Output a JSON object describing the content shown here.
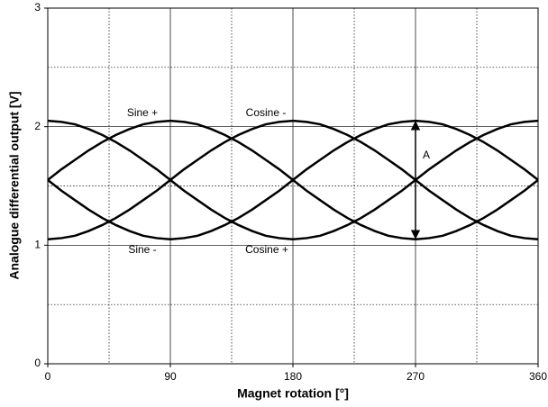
{
  "chart_data": {
    "type": "line",
    "xlabel": "Magnet rotation [°]",
    "ylabel": "Analogue differential output [V]",
    "x": [
      0,
      10,
      20,
      30,
      40,
      50,
      60,
      70,
      80,
      90,
      100,
      110,
      120,
      130,
      140,
      150,
      160,
      170,
      180,
      190,
      200,
      210,
      220,
      230,
      240,
      250,
      260,
      270,
      280,
      290,
      300,
      310,
      320,
      330,
      340,
      350,
      360
    ],
    "series": [
      {
        "name": "Sine +",
        "color": "#000000",
        "values": [
          1.55,
          1.64,
          1.72,
          1.8,
          1.87,
          1.93,
          1.98,
          2.02,
          2.04,
          2.05,
          2.04,
          2.02,
          1.98,
          1.93,
          1.87,
          1.8,
          1.72,
          1.64,
          1.55,
          1.46,
          1.38,
          1.3,
          1.23,
          1.17,
          1.12,
          1.08,
          1.06,
          1.05,
          1.06,
          1.08,
          1.12,
          1.17,
          1.23,
          1.3,
          1.38,
          1.46,
          1.55
        ]
      },
      {
        "name": "Sine -",
        "color": "#000000",
        "values": [
          1.55,
          1.46,
          1.38,
          1.3,
          1.23,
          1.17,
          1.12,
          1.08,
          1.06,
          1.05,
          1.06,
          1.08,
          1.12,
          1.17,
          1.23,
          1.3,
          1.38,
          1.46,
          1.55,
          1.64,
          1.72,
          1.8,
          1.87,
          1.93,
          1.98,
          2.02,
          2.04,
          2.05,
          2.04,
          2.02,
          1.98,
          1.93,
          1.87,
          1.8,
          1.72,
          1.64,
          1.55
        ]
      },
      {
        "name": "Cosine +",
        "color": "#000000",
        "values": [
          2.05,
          2.04,
          2.02,
          1.98,
          1.93,
          1.87,
          1.8,
          1.72,
          1.64,
          1.55,
          1.46,
          1.38,
          1.3,
          1.23,
          1.17,
          1.12,
          1.08,
          1.06,
          1.05,
          1.06,
          1.08,
          1.12,
          1.17,
          1.23,
          1.3,
          1.38,
          1.46,
          1.55,
          1.64,
          1.72,
          1.8,
          1.87,
          1.93,
          1.98,
          2.02,
          2.04,
          2.05
        ]
      },
      {
        "name": "Cosine -",
        "color": "#000000",
        "values": [
          1.05,
          1.06,
          1.08,
          1.12,
          1.17,
          1.23,
          1.3,
          1.38,
          1.46,
          1.55,
          1.64,
          1.72,
          1.8,
          1.87,
          1.93,
          1.98,
          2.02,
          2.04,
          2.05,
          2.04,
          2.02,
          1.98,
          1.93,
          1.87,
          1.8,
          1.72,
          1.64,
          1.55,
          1.46,
          1.38,
          1.3,
          1.23,
          1.17,
          1.12,
          1.08,
          1.06,
          1.05
        ]
      }
    ],
    "annotation": "A",
    "xlim": [
      0,
      360
    ],
    "xticks": [
      0,
      90,
      180,
      270,
      360
    ],
    "xminor": [
      45,
      135,
      225,
      315
    ],
    "ylim": [
      0,
      3
    ],
    "yticks": [
      0,
      1,
      2,
      3
    ],
    "yminor": [
      0.5,
      1.5,
      2.5
    ],
    "grid": true
  }
}
